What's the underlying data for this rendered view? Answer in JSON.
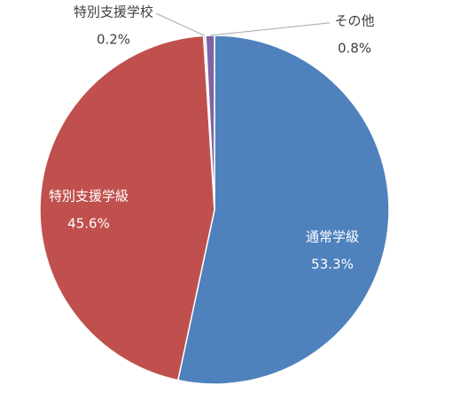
{
  "chart_data": {
    "type": "pie",
    "categories": [
      "通常学級",
      "特別支援学級",
      "特別支援学校",
      "その他"
    ],
    "values": [
      53.3,
      45.6,
      0.2,
      0.8
    ],
    "value_labels": [
      "53.3%",
      "45.6%",
      "0.2%",
      "0.8%"
    ],
    "colors": [
      "#4f81bd",
      "#c0504d",
      "#dcdcdc",
      "#8064a2"
    ]
  }
}
